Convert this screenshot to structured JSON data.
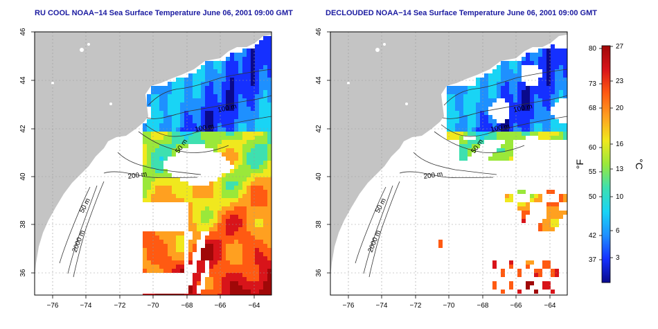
{
  "panels": [
    {
      "title": "RU COOL NOAA−14 Sea Surface Temperature June 06, 2001 09:00 GMT",
      "contour_labels": [
        "100 m",
        "100 m",
        "50 m",
        "200 m",
        "50 m",
        "2000 m"
      ],
      "decloud": false
    },
    {
      "title": "DECLOUDED NOAA−14 Sea Surface Temperature June 06, 2001 09:00 GMT",
      "contour_labels": [
        "100 m",
        "100 m",
        "50 m",
        "200 m",
        "50 m",
        "2000 m"
      ],
      "decloud": true
    }
  ],
  "lon_ticks": [
    "−76",
    "−74",
    "−72",
    "−70",
    "−68",
    "−66",
    "−64"
  ],
  "lat_ticks": [
    "46",
    "44",
    "42",
    "40",
    "38",
    "36"
  ],
  "colorbar": {
    "unit_f": "°F",
    "unit_c": "°C",
    "fahrenheit_ticks": [
      "80",
      "73",
      "68",
      "60",
      "55",
      "50",
      "42",
      "37"
    ],
    "celsius_ticks": [
      "27",
      "23",
      "20",
      "16",
      "13",
      "10",
      "6",
      "3"
    ],
    "colors": [
      "#0a0a8c",
      "#1530ff",
      "#1e90ff",
      "#19d4f5",
      "#3ee0b0",
      "#9ae83a",
      "#f0e81e",
      "#ffa020",
      "#ff5a12",
      "#d8141a",
      "#a00808"
    ]
  },
  "colors": {
    "land": "#c4c4c4",
    "ocean_bg": "#ffffff",
    "title": "#1a1aa0"
  }
}
